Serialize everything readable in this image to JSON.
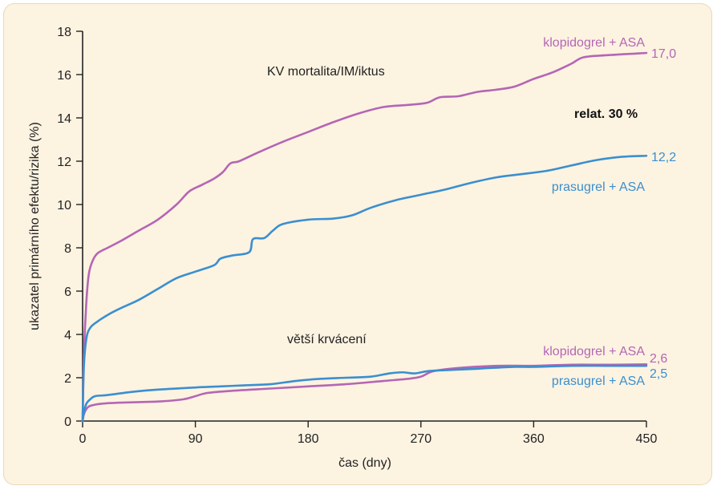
{
  "chart_data": {
    "type": "line",
    "xlabel": "čas (dny)",
    "ylabel": "ukazatel primárního efektu/rizika (%)",
    "xlim": [
      0,
      450
    ],
    "ylim": [
      0,
      18
    ],
    "x_ticks": [
      0,
      90,
      180,
      270,
      360,
      450
    ],
    "y_ticks": [
      0,
      2,
      4,
      6,
      8,
      10,
      12,
      14,
      16,
      18
    ],
    "grid": false,
    "legend": "inline labels",
    "series": [
      {
        "name": "klopidogrel + ASA",
        "group": "KV mortalita/IM/iktus",
        "color": "#b466b4",
        "end_label": "17,0",
        "points": [
          [
            0,
            0
          ],
          [
            1,
            3
          ],
          [
            3,
            5.5
          ],
          [
            5,
            6.8
          ],
          [
            8,
            7.4
          ],
          [
            12,
            7.75
          ],
          [
            20,
            8.0
          ],
          [
            30,
            8.3
          ],
          [
            45,
            8.8
          ],
          [
            60,
            9.3
          ],
          [
            75,
            10.0
          ],
          [
            85,
            10.6
          ],
          [
            95,
            10.9
          ],
          [
            105,
            11.2
          ],
          [
            112,
            11.5
          ],
          [
            118,
            11.9
          ],
          [
            125,
            12.0
          ],
          [
            140,
            12.4
          ],
          [
            160,
            12.9
          ],
          [
            180,
            13.35
          ],
          [
            200,
            13.8
          ],
          [
            220,
            14.2
          ],
          [
            240,
            14.5
          ],
          [
            260,
            14.6
          ],
          [
            275,
            14.7
          ],
          [
            285,
            14.95
          ],
          [
            300,
            15.0
          ],
          [
            315,
            15.2
          ],
          [
            330,
            15.3
          ],
          [
            345,
            15.45
          ],
          [
            360,
            15.8
          ],
          [
            375,
            16.1
          ],
          [
            390,
            16.5
          ],
          [
            400,
            16.8
          ],
          [
            420,
            16.9
          ],
          [
            450,
            17.0
          ]
        ]
      },
      {
        "name": "prasugrel + ASA",
        "group": "KV mortalita/IM/iktus",
        "color": "#3a8fcf",
        "end_label": "12,2",
        "points": [
          [
            0,
            0
          ],
          [
            1,
            2.5
          ],
          [
            3,
            3.8
          ],
          [
            6,
            4.3
          ],
          [
            12,
            4.6
          ],
          [
            20,
            4.9
          ],
          [
            30,
            5.2
          ],
          [
            45,
            5.6
          ],
          [
            60,
            6.1
          ],
          [
            75,
            6.6
          ],
          [
            90,
            6.9
          ],
          [
            105,
            7.2
          ],
          [
            110,
            7.5
          ],
          [
            120,
            7.65
          ],
          [
            133,
            7.8
          ],
          [
            136,
            8.4
          ],
          [
            145,
            8.45
          ],
          [
            152,
            8.8
          ],
          [
            160,
            9.1
          ],
          [
            180,
            9.3
          ],
          [
            200,
            9.35
          ],
          [
            215,
            9.5
          ],
          [
            230,
            9.85
          ],
          [
            250,
            10.2
          ],
          [
            270,
            10.45
          ],
          [
            290,
            10.7
          ],
          [
            310,
            11.0
          ],
          [
            330,
            11.25
          ],
          [
            350,
            11.4
          ],
          [
            370,
            11.55
          ],
          [
            390,
            11.8
          ],
          [
            410,
            12.05
          ],
          [
            430,
            12.2
          ],
          [
            450,
            12.25
          ]
        ]
      },
      {
        "name": "klopidogrel + ASA",
        "group": "větší krvácení",
        "color": "#b466b4",
        "end_label": "2,6",
        "points": [
          [
            0,
            0
          ],
          [
            1,
            0.3
          ],
          [
            3,
            0.55
          ],
          [
            6,
            0.7
          ],
          [
            15,
            0.8
          ],
          [
            30,
            0.85
          ],
          [
            60,
            0.9
          ],
          [
            80,
            1.0
          ],
          [
            90,
            1.15
          ],
          [
            100,
            1.3
          ],
          [
            120,
            1.4
          ],
          [
            150,
            1.5
          ],
          [
            180,
            1.6
          ],
          [
            210,
            1.7
          ],
          [
            240,
            1.85
          ],
          [
            260,
            1.95
          ],
          [
            270,
            2.05
          ],
          [
            280,
            2.3
          ],
          [
            300,
            2.45
          ],
          [
            330,
            2.55
          ],
          [
            360,
            2.55
          ],
          [
            390,
            2.6
          ],
          [
            420,
            2.6
          ],
          [
            450,
            2.62
          ]
        ]
      },
      {
        "name": "prasugrel + ASA",
        "group": "větší krvácení",
        "color": "#3a8fcf",
        "end_label": "2,5",
        "points": [
          [
            0,
            0
          ],
          [
            1,
            0.4
          ],
          [
            3,
            0.8
          ],
          [
            6,
            1.0
          ],
          [
            10,
            1.15
          ],
          [
            20,
            1.2
          ],
          [
            40,
            1.35
          ],
          [
            60,
            1.45
          ],
          [
            90,
            1.55
          ],
          [
            110,
            1.6
          ],
          [
            130,
            1.65
          ],
          [
            150,
            1.7
          ],
          [
            170,
            1.85
          ],
          [
            190,
            1.95
          ],
          [
            210,
            2.0
          ],
          [
            230,
            2.05
          ],
          [
            245,
            2.2
          ],
          [
            255,
            2.25
          ],
          [
            265,
            2.2
          ],
          [
            275,
            2.3
          ],
          [
            290,
            2.35
          ],
          [
            310,
            2.4
          ],
          [
            325,
            2.45
          ],
          [
            345,
            2.5
          ],
          [
            360,
            2.5
          ],
          [
            390,
            2.55
          ],
          [
            420,
            2.55
          ],
          [
            450,
            2.55
          ]
        ]
      }
    ],
    "annotations": [
      {
        "text": "KV mortalita/IM/iktus",
        "x": 0,
        "y": 0
      },
      {
        "text": "relat. 30 %",
        "x": 0,
        "y": 0
      },
      {
        "text": "větší krvácení",
        "x": 0,
        "y": 0
      }
    ]
  }
}
